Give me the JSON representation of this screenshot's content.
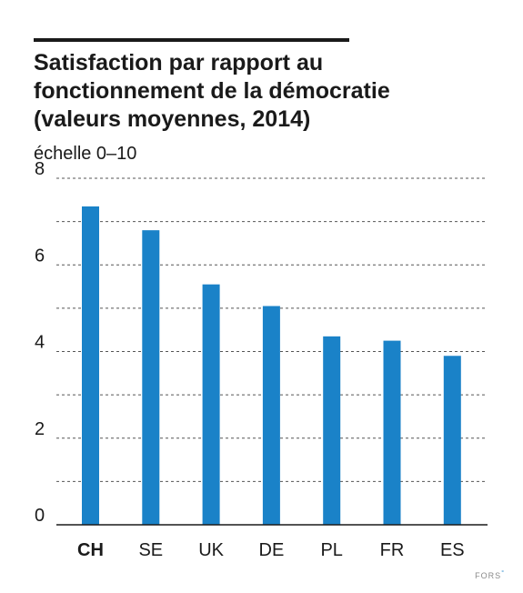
{
  "chart_data": {
    "type": "bar",
    "title": "Satisfaction par rapport au\nfonctionnement de la démocratie\n(valeurs moyennes, 2014)",
    "ylabel": "échelle 0–10",
    "xlabel": "",
    "categories": [
      "CH",
      "SE",
      "UK",
      "DE",
      "PL",
      "FR",
      "ES"
    ],
    "highlighted_category": "CH",
    "values": [
      7.35,
      6.8,
      5.55,
      5.05,
      4.35,
      4.25,
      3.9
    ],
    "ylim": [
      0,
      8
    ],
    "yticks": [
      "0",
      "2",
      "4",
      "6",
      "8"
    ],
    "grid": true,
    "grid_style": "dotted",
    "bar_color": "#1a82c8",
    "text_color": "#1a1a1a"
  },
  "logo": {
    "text": "FORS",
    "mark": "°"
  }
}
